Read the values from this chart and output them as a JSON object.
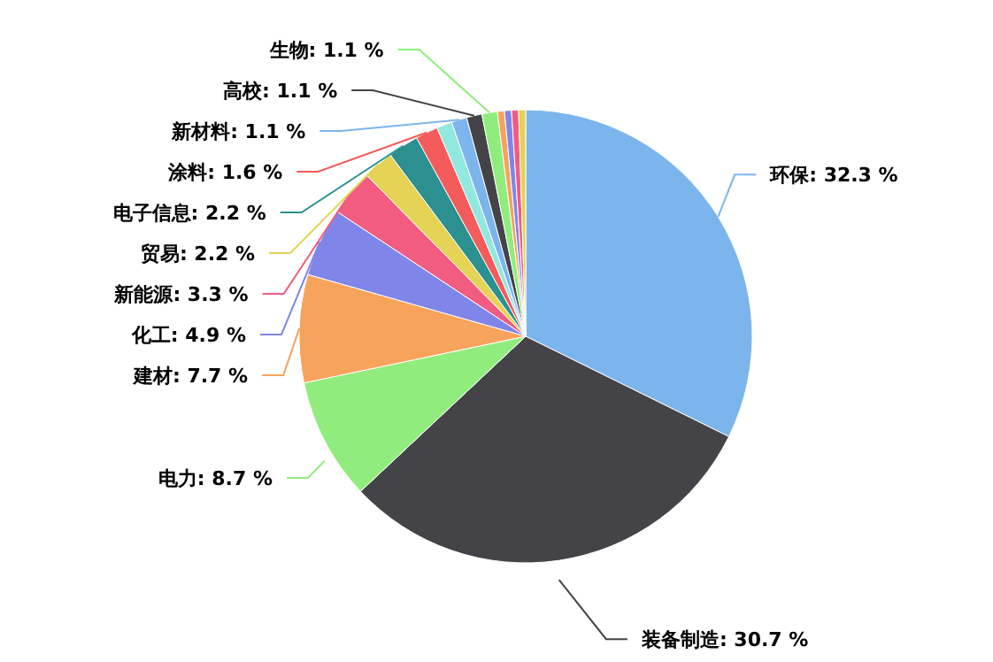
{
  "chart_data": {
    "type": "pie",
    "categories": [
      "环保",
      "装备制造",
      "电力",
      "建材",
      "化工",
      "新能源",
      "贸易",
      "电子信息",
      "涂料",
      null,
      "新材料",
      "高校",
      "生物",
      null,
      null,
      null,
      null
    ],
    "values": [
      32.3,
      30.7,
      8.7,
      7.7,
      4.9,
      3.3,
      2.2,
      2.2,
      1.6,
      1.1,
      1.1,
      1.1,
      1.1,
      0.5,
      0.5,
      0.5,
      0.5
    ],
    "value_labels": [
      "32.3 %",
      "30.7 %",
      "8.7 %",
      "7.7 %",
      "4.9 %",
      "3.3 %",
      "2.2 %",
      "2.2 %",
      "1.6 %",
      null,
      "1.1 %",
      "1.1 %",
      "1.1 %",
      null,
      null,
      null,
      null
    ],
    "colors": [
      "#7cb5ec",
      "#434348",
      "#90ed7d",
      "#f7a35c",
      "#8085e9",
      "#f15c80",
      "#e4d354",
      "#2b908f",
      "#f45b5b",
      "#91e8e1",
      "#7cb5ec",
      "#434348",
      "#90ed7d",
      "#f7a35c",
      "#8085e9",
      "#f15c80",
      "#e4d354"
    ],
    "legend": false
  }
}
